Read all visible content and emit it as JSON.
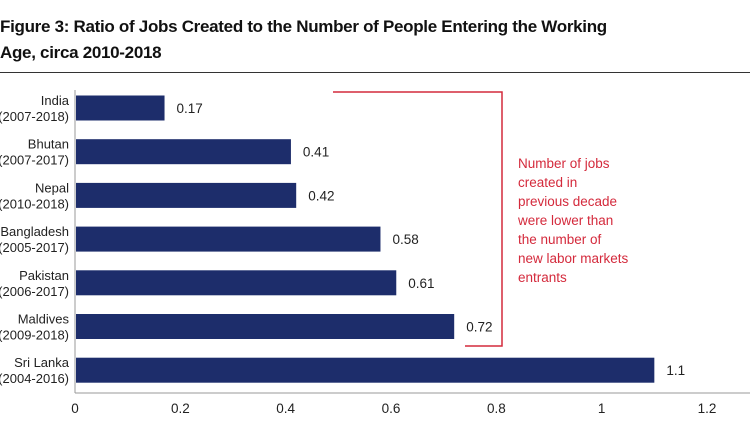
{
  "chart_data": {
    "type": "bar",
    "orientation": "horizontal",
    "title_lines": [
      "Figure 3: Ratio of Jobs Created to the Number of People Entering the Working",
      "Age, circa 2010-2018"
    ],
    "categories": [
      [
        "India",
        "(2007-2018)"
      ],
      [
        "Bhutan",
        "(2007-2017)"
      ],
      [
        "Nepal",
        "(2010-2018)"
      ],
      [
        "Bangladesh",
        "(2005-2017)"
      ],
      [
        "Pakistan",
        "(2006-2017)"
      ],
      [
        "Maldives",
        "(2009-2018)"
      ],
      [
        "Sri Lanka",
        "(2004-2016)"
      ]
    ],
    "values": [
      0.17,
      0.41,
      0.42,
      0.58,
      0.61,
      0.72,
      1.1
    ],
    "value_labels": [
      "0.17",
      "0.41",
      "0.42",
      "0.58",
      "0.61",
      "0.72",
      "1.1"
    ],
    "xlim": [
      0,
      1.2
    ],
    "xticks": [
      "0",
      "0.2",
      "0.4",
      "0.6",
      "0.8",
      "1",
      "1.2"
    ],
    "xlabel": "",
    "ylabel": "",
    "grid": false,
    "annotation": {
      "lines": [
        "Number of jobs",
        "created in",
        "previous decade",
        "were lower than",
        "the number of",
        "new labor markets",
        "entrants"
      ],
      "bracket_spans_categories": [
        "India",
        "Maldives"
      ]
    },
    "colors": {
      "bar": "#1d2d6b",
      "annotation": "#d42a3c",
      "text": "#222222"
    }
  }
}
